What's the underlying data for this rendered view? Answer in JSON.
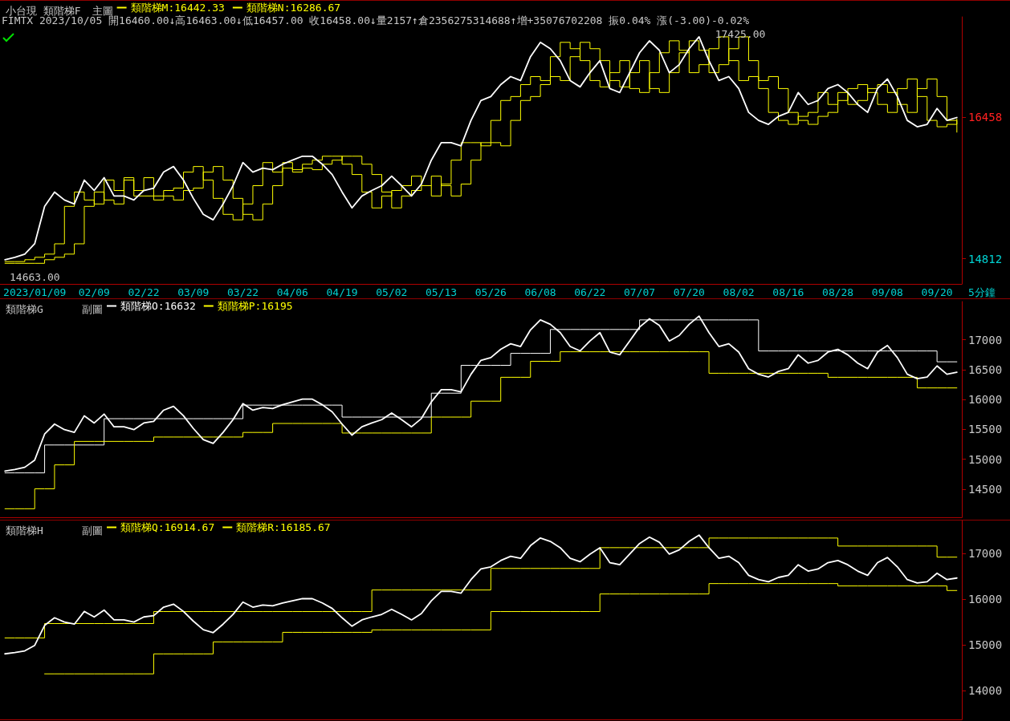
{
  "chart_data": [
    {
      "type": "line",
      "title": "小台現 類階梯F",
      "subtitle": "主圖",
      "xlabel": "5分鐘",
      "annotations": [
        "FIMTX 2023/10/05 開16460.00↓高16463.00↓低16457.00 收16458.00↓量2157↑倉2356275314688↑增+35076702208 振0.04% 漲(-3.00)-0.02%",
        {
          "text": "17425.00",
          "y": 17425
        },
        "14663.00"
      ],
      "categories": [
        null,
        null,
        null,
        "2023/01/09",
        null,
        null,
        null,
        null,
        null,
        "02/09",
        null,
        null,
        null,
        null,
        "02/22",
        null,
        null,
        null,
        null,
        "03/09",
        null,
        null,
        null,
        null,
        "03/22",
        null,
        null,
        null,
        null,
        "04/06",
        null,
        null,
        null,
        null,
        "04/19",
        null,
        null,
        null,
        null,
        "05/02",
        null,
        null,
        null,
        null,
        "05/13",
        null,
        null,
        null,
        null,
        "05/26",
        null,
        null,
        null,
        null,
        "06/08",
        null,
        null,
        null,
        null,
        "06/22",
        null,
        null,
        null,
        null,
        "07/07",
        null,
        null,
        null,
        null,
        "07/20",
        null,
        null,
        null,
        null,
        "08/02",
        null,
        null,
        null,
        null,
        "08/16",
        null,
        null,
        null,
        null,
        "08/28",
        null,
        null,
        null,
        null,
        "09/08",
        null,
        null,
        null,
        null,
        "09/20",
        null,
        null
      ],
      "series": [
        {
          "color": "#ffffff",
          "values": [
            14802,
            14830,
            14867,
            14987,
            15423,
            15590,
            15497,
            15451,
            15729,
            15608,
            15757,
            15544,
            15544,
            15497,
            15608,
            15636,
            15822,
            15887,
            15729,
            15516,
            15330,
            15266,
            15451,
            15664,
            15933,
            15822,
            15868,
            15850,
            15914,
            15961,
            16007,
            16007,
            15914,
            15794,
            15590,
            15405,
            15544,
            15608,
            15664,
            15775,
            15664,
            15544,
            15683,
            15961,
            16165,
            16165,
            16128,
            16424,
            16656,
            16702,
            16841,
            16934,
            16888,
            17166,
            17333,
            17259,
            17120,
            16888,
            16814,
            16980,
            17120,
            16795,
            16749,
            16980,
            17212,
            17351,
            17240,
            16980,
            17073,
            17259,
            17397,
            17120,
            16888,
            16934,
            16795,
            16517,
            16424,
            16378,
            16471,
            16517,
            16749,
            16610,
            16656,
            16795,
            16841,
            16749,
            16610,
            16517,
            16795,
            16906,
            16702,
            16424,
            16350,
            16378,
            16563,
            16424,
            16458
          ]
        },
        {
          "type": "step",
          "name": "類階梯M:16442.33",
          "color": "#ffff00",
          "values": [
            14780,
            14780,
            14802,
            14830,
            14867,
            14987,
            15423,
            15590,
            15497,
            15451,
            15729,
            15608,
            15757,
            15544,
            15544,
            15497,
            15608,
            15636,
            15822,
            15887,
            15729,
            15516,
            15330,
            15266,
            15451,
            15664,
            15933,
            15822,
            15868,
            15850,
            15914,
            15961,
            16007,
            16007,
            15914,
            15794,
            15590,
            15405,
            15544,
            15608,
            15664,
            15775,
            15664,
            15544,
            15683,
            15961,
            16165,
            16165,
            16128,
            16424,
            16656,
            16702,
            16841,
            16934,
            16888,
            17166,
            17333,
            17259,
            17120,
            16888,
            16814,
            16980,
            17120,
            16795,
            16749,
            16980,
            17212,
            17351,
            17240,
            16980,
            17073,
            17259,
            17397,
            17120,
            16888,
            16934,
            16795,
            16517,
            16424,
            16378,
            16471,
            16517,
            16749,
            16610,
            16656,
            16795,
            16841,
            16749,
            16610,
            16517,
            16795,
            16906,
            16702,
            16424,
            16350,
            16378,
            16442.33
          ]
        },
        {
          "type": "step",
          "name": "類階梯N:16286.67",
          "color": "#ffff00",
          "values": [
            14760,
            14760,
            14760,
            14760,
            14802,
            14830,
            14867,
            14987,
            15423,
            15590,
            15497,
            15451,
            15729,
            15608,
            15757,
            15544,
            15544,
            15497,
            15608,
            15636,
            15822,
            15887,
            15729,
            15516,
            15330,
            15266,
            15451,
            15664,
            15933,
            15822,
            15868,
            15850,
            15914,
            15961,
            16007,
            16007,
            15914,
            15794,
            15590,
            15405,
            15544,
            15608,
            15664,
            15775,
            15664,
            15544,
            15683,
            15961,
            16165,
            16165,
            16128,
            16424,
            16656,
            16702,
            16841,
            16934,
            16888,
            17166,
            17333,
            17259,
            17120,
            16888,
            16814,
            16980,
            17120,
            16795,
            16749,
            16980,
            17212,
            17351,
            17240,
            16980,
            17073,
            17259,
            17397,
            17120,
            16888,
            16934,
            16795,
            16517,
            16424,
            16378,
            16471,
            16517,
            16749,
            16610,
            16656,
            16795,
            16841,
            16749,
            16610,
            16517,
            16795,
            16906,
            16702,
            16424,
            16286.67
          ]
        }
      ],
      "ylim": [
        14520,
        17630
      ],
      "yticks": [
        14812,
        16458
      ],
      "grid": false,
      "legend": "top left",
      "marker": "none",
      "line_style": "solid"
    },
    {
      "type": "line",
      "title": "類階梯G",
      "subtitle": "副圖",
      "categories": [
        null,
        null,
        null,
        null,
        null,
        null,
        null,
        null,
        null,
        null,
        null,
        null,
        null,
        null,
        null,
        null,
        null,
        null,
        null,
        null,
        null,
        null,
        null,
        null,
        null,
        null,
        null,
        null,
        null,
        null,
        null,
        null,
        null,
        null,
        null,
        null,
        null,
        null,
        null,
        null,
        null,
        null,
        null,
        null,
        null,
        null,
        null,
        null,
        null,
        null,
        null,
        null,
        null,
        null,
        null,
        null,
        null,
        null,
        null,
        null,
        null,
        null,
        null,
        null,
        null,
        null,
        null,
        null,
        null,
        null,
        null,
        null,
        null,
        null,
        null,
        null,
        null,
        null,
        null,
        null,
        null,
        null,
        null,
        null,
        null,
        null,
        null,
        null,
        null,
        null,
        null,
        null,
        null,
        null,
        null,
        null,
        null
      ],
      "series": [
        {
          "color": "#ffffff",
          "values": [
            14802,
            14830,
            14867,
            14987,
            15423,
            15590,
            15497,
            15451,
            15729,
            15608,
            15757,
            15544,
            15544,
            15497,
            15608,
            15636,
            15822,
            15887,
            15729,
            15516,
            15330,
            15266,
            15451,
            15664,
            15933,
            15822,
            15868,
            15850,
            15914,
            15961,
            16007,
            16007,
            15914,
            15794,
            15590,
            15405,
            15544,
            15608,
            15664,
            15775,
            15664,
            15544,
            15683,
            15961,
            16165,
            16165,
            16128,
            16424,
            16656,
            16702,
            16841,
            16934,
            16888,
            17166,
            17333,
            17259,
            17120,
            16888,
            16814,
            16980,
            17120,
            16795,
            16749,
            16980,
            17212,
            17351,
            17240,
            16980,
            17073,
            17259,
            17397,
            17120,
            16888,
            16934,
            16795,
            16517,
            16424,
            16378,
            16471,
            16517,
            16749,
            16610,
            16656,
            16795,
            16841,
            16749,
            16610,
            16517,
            16795,
            16906,
            16702,
            16424,
            16350,
            16378,
            16563,
            16424,
            16458
          ]
        },
        {
          "type": "step",
          "name": "類階梯O:16632",
          "color": "#ffffff",
          "values": [
            14773,
            14773,
            14773,
            14773,
            15240,
            15240,
            15240,
            15240,
            15240,
            15240,
            15680,
            15680,
            15680,
            15680,
            15680,
            15680,
            15680,
            15680,
            15680,
            15680,
            15680,
            15680,
            15680,
            15680,
            15907,
            15907,
            15907,
            15907,
            15907,
            15907,
            15907,
            15907,
            15907,
            15907,
            15707,
            15707,
            15707,
            15707,
            15707,
            15707,
            15707,
            15707,
            15707,
            16107,
            16107,
            16107,
            16573,
            16573,
            16573,
            16573,
            16573,
            16773,
            16773,
            16773,
            16773,
            17173,
            17173,
            17173,
            17173,
            17173,
            17173,
            17173,
            17173,
            17173,
            17333,
            17333,
            17333,
            17333,
            17333,
            17333,
            17333,
            17333,
            17333,
            17333,
            17333,
            17333,
            16813,
            16813,
            16813,
            16813,
            16813,
            16813,
            16813,
            16813,
            16813,
            16813,
            16813,
            16813,
            16813,
            16813,
            16813,
            16813,
            16813,
            16813,
            16632,
            16632,
            16632
          ]
        },
        {
          "type": "step",
          "name": "類階梯P:16195",
          "color": "#ffff00",
          "values": [
            14173,
            14173,
            14173,
            14507,
            14507,
            14907,
            14907,
            15300,
            15300,
            15300,
            15300,
            15300,
            15300,
            15300,
            15300,
            15373,
            15373,
            15373,
            15373,
            15373,
            15373,
            15373,
            15373,
            15373,
            15450,
            15450,
            15450,
            15600,
            15600,
            15600,
            15600,
            15600,
            15600,
            15600,
            15440,
            15440,
            15440,
            15440,
            15440,
            15440,
            15440,
            15440,
            15440,
            15707,
            15707,
            15707,
            15707,
            15973,
            15973,
            15973,
            16373,
            16373,
            16373,
            16640,
            16640,
            16640,
            16800,
            16800,
            16800,
            16800,
            16800,
            16800,
            16800,
            16800,
            16800,
            16800,
            16800,
            16800,
            16800,
            16800,
            16800,
            16440,
            16440,
            16440,
            16440,
            16440,
            16440,
            16440,
            16440,
            16440,
            16440,
            16440,
            16440,
            16373,
            16373,
            16373,
            16373,
            16373,
            16373,
            16373,
            16373,
            16373,
            16195,
            16195,
            16195,
            16195,
            16195
          ]
        }
      ],
      "ylim": [
        14030,
        17640
      ],
      "yticks": [
        14500,
        15000,
        15500,
        16000,
        16500,
        17000
      ],
      "tick_labels": "y",
      "grid": false,
      "legend": "top left",
      "marker": "none",
      "line_style": "solid"
    },
    {
      "type": "line",
      "title": "類階梯H",
      "subtitle": "副圖",
      "categories": [
        null,
        null,
        null,
        null,
        null,
        null,
        null,
        null,
        null,
        null,
        null,
        null,
        null,
        null,
        null,
        null,
        null,
        null,
        null,
        null,
        null,
        null,
        null,
        null,
        null,
        null,
        null,
        null,
        null,
        null,
        null,
        null,
        null,
        null,
        null,
        null,
        null,
        null,
        null,
        null,
        null,
        null,
        null,
        null,
        null,
        null,
        null,
        null,
        null,
        null,
        null,
        null,
        null,
        null,
        null,
        null,
        null,
        null,
        null,
        null,
        null,
        null,
        null,
        null,
        null,
        null,
        null,
        null,
        null,
        null,
        null,
        null,
        null,
        null,
        null,
        null,
        null,
        null,
        null,
        null,
        null,
        null,
        null,
        null,
        null,
        null,
        null,
        null,
        null,
        null,
        null,
        null,
        null,
        null,
        null,
        null,
        null
      ],
      "series": [
        {
          "color": "#ffffff",
          "values": [
            14802,
            14830,
            14867,
            14987,
            15423,
            15590,
            15497,
            15451,
            15729,
            15608,
            15757,
            15544,
            15544,
            15497,
            15608,
            15636,
            15822,
            15887,
            15729,
            15516,
            15330,
            15266,
            15451,
            15664,
            15933,
            15822,
            15868,
            15850,
            15914,
            15961,
            16007,
            16007,
            15914,
            15794,
            15590,
            15405,
            15544,
            15608,
            15664,
            15775,
            15664,
            15544,
            15683,
            15961,
            16165,
            16165,
            16128,
            16424,
            16656,
            16702,
            16841,
            16934,
            16888,
            17166,
            17333,
            17259,
            17120,
            16888,
            16814,
            16980,
            17120,
            16795,
            16749,
            16980,
            17212,
            17351,
            17240,
            16980,
            17073,
            17259,
            17397,
            17120,
            16888,
            16934,
            16795,
            16517,
            16424,
            16378,
            16471,
            16517,
            16749,
            16610,
            16656,
            16795,
            16841,
            16749,
            16610,
            16517,
            16795,
            16906,
            16702,
            16424,
            16350,
            16378,
            16563,
            16424,
            16458
          ]
        },
        {
          "type": "step",
          "name": "類階梯Q:16914.67",
          "color": "#ffff00",
          "values": [
            15150,
            15150,
            15150,
            15150,
            15464,
            15464,
            15464,
            15464,
            15464,
            15464,
            15464,
            15464,
            15464,
            15464,
            15464,
            15726,
            15726,
            15726,
            15726,
            15726,
            15726,
            15726,
            15726,
            15726,
            15726,
            15726,
            15726,
            15726,
            15726,
            15726,
            15726,
            15726,
            15726,
            15726,
            15726,
            15726,
            15726,
            16197,
            16197,
            16197,
            16197,
            16197,
            16197,
            16197,
            16197,
            16197,
            16197,
            16197,
            16197,
            16668,
            16668,
            16668,
            16668,
            16668,
            16668,
            16668,
            16668,
            16668,
            16668,
            16668,
            17122,
            17122,
            17122,
            17122,
            17122,
            17122,
            17122,
            17122,
            17122,
            17122,
            17122,
            17332,
            17332,
            17332,
            17332,
            17332,
            17332,
            17332,
            17332,
            17332,
            17332,
            17332,
            17332,
            17332,
            17157,
            17157,
            17157,
            17157,
            17157,
            17157,
            17157,
            17157,
            17157,
            17157,
            16914.67,
            16914.67,
            16914.67
          ]
        },
        {
          "type": "step",
          "name": "類階梯R:16185.67",
          "color": "#ffff00",
          "values": [
            null,
            null,
            null,
            null,
            14365,
            14365,
            14365,
            14365,
            14365,
            14365,
            14365,
            14365,
            14365,
            14365,
            14365,
            14801,
            14801,
            14801,
            14801,
            14801,
            14801,
            15063,
            15063,
            15063,
            15063,
            15063,
            15063,
            15063,
            15272,
            15272,
            15272,
            15272,
            15272,
            15272,
            15272,
            15272,
            15272,
            15325,
            15325,
            15325,
            15325,
            15325,
            15325,
            15325,
            15325,
            15325,
            15325,
            15325,
            15325,
            15726,
            15726,
            15726,
            15726,
            15726,
            15726,
            15726,
            15726,
            15726,
            15726,
            15726,
            16110,
            16110,
            16110,
            16110,
            16110,
            16110,
            16110,
            16110,
            16110,
            16110,
            16110,
            16337,
            16337,
            16337,
            16337,
            16337,
            16337,
            16337,
            16337,
            16337,
            16337,
            16337,
            16337,
            16337,
            16285,
            16285,
            16285,
            16285,
            16285,
            16285,
            16285,
            16285,
            16285,
            16285,
            16285,
            16185.67,
            16185.67
          ]
        }
      ],
      "ylim": [
        13370,
        17715
      ],
      "yticks": [
        14000,
        15000,
        16000,
        17000
      ],
      "tick_labels": "y",
      "grid": false,
      "legend": "top left",
      "marker": "none",
      "line_style": "solid"
    }
  ]
}
